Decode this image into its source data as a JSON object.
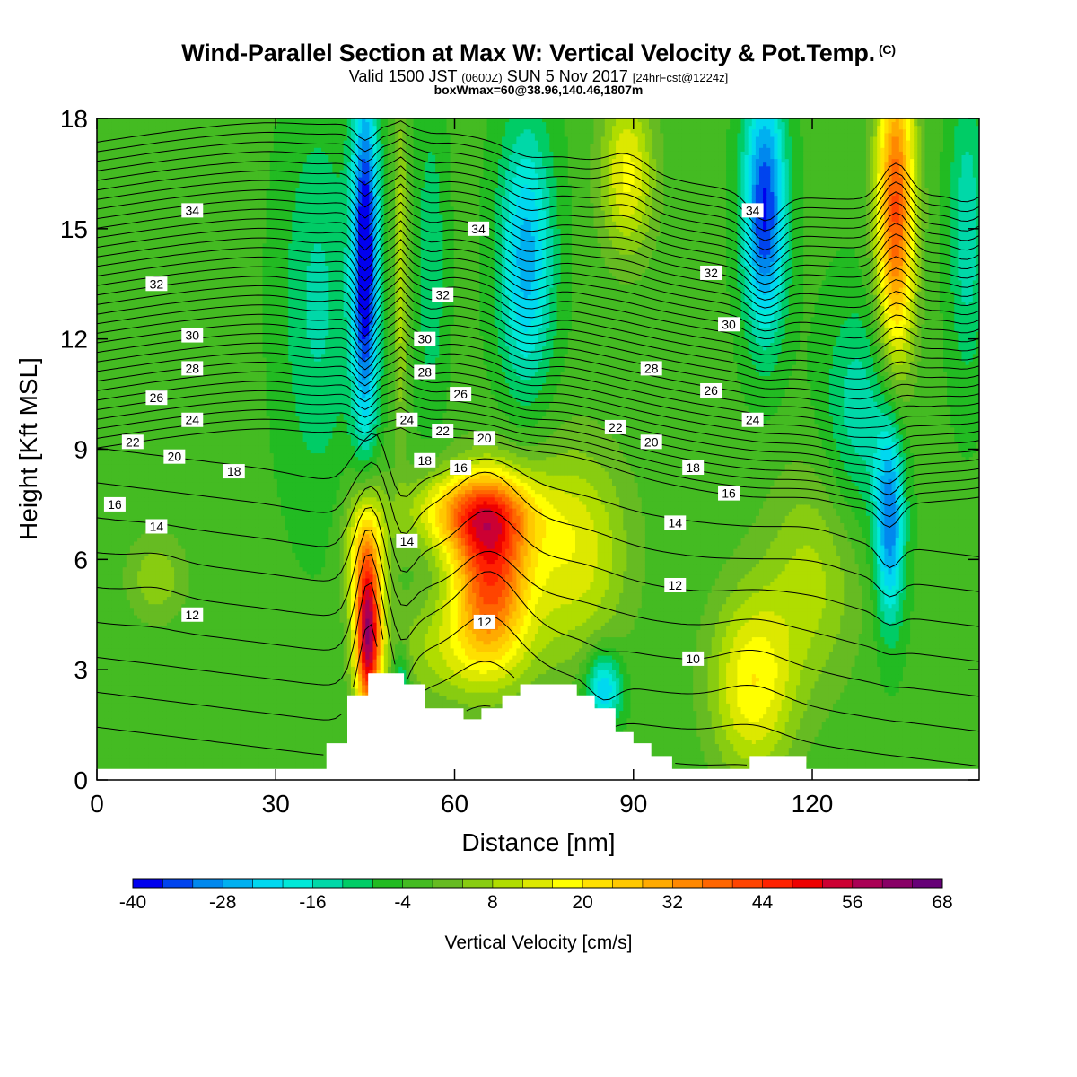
{
  "chart_data": {
    "type": "heatmap",
    "title": "Wind-Parallel Section at Max W: Vertical Velocity & Pot.Temp.",
    "copyright_mark": "(C)",
    "subtitle_parts": [
      "Valid 1500 JST ",
      "(0600Z)",
      " SUN 5 Nov 2017 ",
      "[24hrFcst@1224z]"
    ],
    "subtitle2": "boxWmax=60@38.96,140.46,1807m",
    "xlabel": "Distance [nm]",
    "ylabel": "Height [Kft MSL]",
    "xlim": [
      0,
      148
    ],
    "ylim": [
      0,
      18
    ],
    "xticks": [
      0,
      30,
      60,
      90,
      120
    ],
    "yticks": [
      0,
      3,
      6,
      9,
      12,
      15,
      18
    ],
    "colorbar": {
      "label": "Vertical Velocity [cm/s]",
      "levels": [
        -40,
        -36,
        -32,
        -28,
        -24,
        -20,
        -16,
        -12,
        -8,
        -4,
        0,
        4,
        8,
        12,
        16,
        20,
        24,
        28,
        32,
        36,
        40,
        44,
        48,
        52,
        56,
        60,
        64,
        68
      ],
      "tick_labels": [
        "-40",
        "-28",
        "-16",
        "-4",
        "8",
        "20",
        "32",
        "44",
        "56",
        "68"
      ],
      "colors": [
        "#0000ee",
        "#0044ee",
        "#0088ee",
        "#00b0f0",
        "#00d8f0",
        "#00e8d8",
        "#00d8a8",
        "#00cc66",
        "#22bb22",
        "#44bb22",
        "#66bb22",
        "#88cc11",
        "#b0dd00",
        "#dde800",
        "#ffff00",
        "#ffe000",
        "#ffc800",
        "#ffaa00",
        "#ff8800",
        "#ff6600",
        "#ff4400",
        "#ff2200",
        "#ee0000",
        "#cc0033",
        "#aa0055",
        "#880066",
        "#660077"
      ]
    },
    "w_features": [
      {
        "x": 46,
        "z": 3.5,
        "w": 68
      },
      {
        "x": 66,
        "z": 5.5,
        "w": 44
      },
      {
        "x": 45,
        "z": 14,
        "w": -40
      },
      {
        "x": 72,
        "z": 14,
        "w": -24
      },
      {
        "x": 112,
        "z": 16,
        "w": -32
      },
      {
        "x": 133,
        "z": 7,
        "w": -24
      },
      {
        "x": 134,
        "z": 16,
        "w": 40
      },
      {
        "x": 110,
        "z": 2.5,
        "w": 20
      }
    ],
    "theta_labels": [
      {
        "text": "34",
        "x": 16,
        "z": 15.5
      },
      {
        "text": "32",
        "x": 10,
        "z": 13.5
      },
      {
        "text": "30",
        "x": 16,
        "z": 12.1
      },
      {
        "text": "28",
        "x": 16,
        "z": 11.2
      },
      {
        "text": "26",
        "x": 10,
        "z": 10.4
      },
      {
        "text": "24",
        "x": 16,
        "z": 9.8
      },
      {
        "text": "22",
        "x": 6,
        "z": 9.2
      },
      {
        "text": "20",
        "x": 13,
        "z": 8.8
      },
      {
        "text": "18",
        "x": 23,
        "z": 8.4
      },
      {
        "text": "16",
        "x": 3,
        "z": 7.5
      },
      {
        "text": "14",
        "x": 10,
        "z": 6.9
      },
      {
        "text": "12",
        "x": 16,
        "z": 4.5
      },
      {
        "text": "34",
        "x": 64,
        "z": 15.0
      },
      {
        "text": "32",
        "x": 58,
        "z": 13.2
      },
      {
        "text": "30",
        "x": 55,
        "z": 12.0
      },
      {
        "text": "28",
        "x": 55,
        "z": 11.1
      },
      {
        "text": "26",
        "x": 61,
        "z": 10.5
      },
      {
        "text": "24",
        "x": 52,
        "z": 9.8
      },
      {
        "text": "22",
        "x": 58,
        "z": 9.5
      },
      {
        "text": "20",
        "x": 65,
        "z": 9.3
      },
      {
        "text": "18",
        "x": 55,
        "z": 8.7
      },
      {
        "text": "16",
        "x": 61,
        "z": 8.5
      },
      {
        "text": "14",
        "x": 52,
        "z": 6.5
      },
      {
        "text": "12",
        "x": 65,
        "z": 4.3
      },
      {
        "text": "34",
        "x": 110,
        "z": 15.5
      },
      {
        "text": "32",
        "x": 103,
        "z": 13.8
      },
      {
        "text": "30",
        "x": 106,
        "z": 12.4
      },
      {
        "text": "28",
        "x": 93,
        "z": 11.2
      },
      {
        "text": "26",
        "x": 103,
        "z": 10.6
      },
      {
        "text": "24",
        "x": 110,
        "z": 9.8
      },
      {
        "text": "22",
        "x": 87,
        "z": 9.6
      },
      {
        "text": "20",
        "x": 93,
        "z": 9.2
      },
      {
        "text": "18",
        "x": 100,
        "z": 8.5
      },
      {
        "text": "16",
        "x": 106,
        "z": 7.8
      },
      {
        "text": "14",
        "x": 97,
        "z": 7.0
      },
      {
        "text": "12",
        "x": 97,
        "z": 5.3
      },
      {
        "text": "10",
        "x": 100,
        "z": 3.3
      }
    ],
    "terrain_kft": [
      [
        0,
        0.3
      ],
      [
        38.5,
        0.3
      ],
      [
        38.5,
        1.0
      ],
      [
        42,
        1.0
      ],
      [
        42,
        2.3
      ],
      [
        45.5,
        2.3
      ],
      [
        45.5,
        2.9
      ],
      [
        51.5,
        2.9
      ],
      [
        51.5,
        2.6
      ],
      [
        55,
        2.6
      ],
      [
        55,
        1.95
      ],
      [
        61.5,
        1.95
      ],
      [
        61.5,
        1.65
      ],
      [
        64.5,
        1.65
      ],
      [
        64.5,
        1.95
      ],
      [
        68,
        1.95
      ],
      [
        68,
        2.3
      ],
      [
        71,
        2.3
      ],
      [
        71,
        2.6
      ],
      [
        80.5,
        2.6
      ],
      [
        80.5,
        2.3
      ],
      [
        83.5,
        2.3
      ],
      [
        83.5,
        1.95
      ],
      [
        87,
        1.95
      ],
      [
        87,
        1.3
      ],
      [
        90,
        1.3
      ],
      [
        90,
        1.0
      ],
      [
        93,
        1.0
      ],
      [
        93,
        0.65
      ],
      [
        96.5,
        0.65
      ],
      [
        96.5,
        0.3
      ],
      [
        109.5,
        0.3
      ],
      [
        109.5,
        0.65
      ],
      [
        119,
        0.65
      ],
      [
        119,
        0.3
      ],
      [
        148,
        0.3
      ]
    ]
  }
}
